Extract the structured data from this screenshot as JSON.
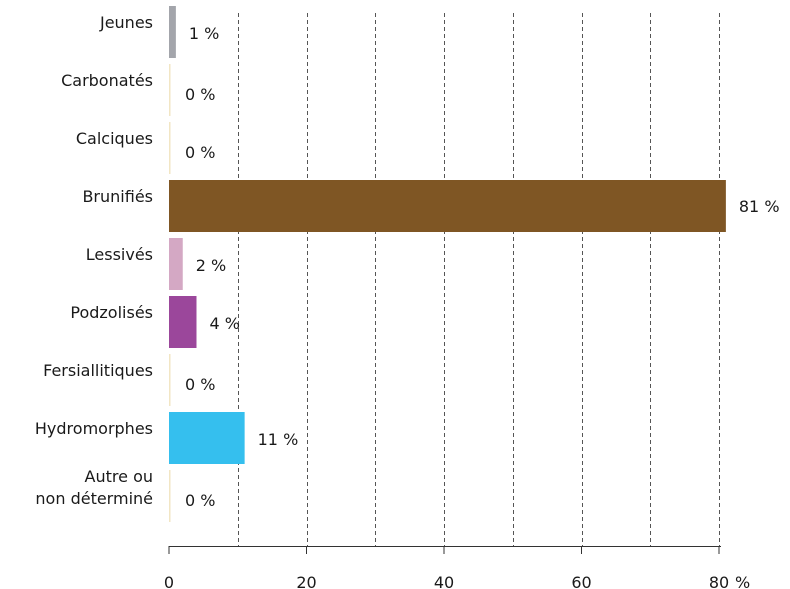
{
  "chart_data": {
    "type": "bar",
    "orientation": "horizontal",
    "categories": [
      "Jeunes",
      "Carbonatés",
      "Calciques",
      "Brunifiés",
      "Lessivés",
      "Podzolisés",
      "Fersiallitiques",
      "Hydromorphes",
      "Autre ou non déterminé"
    ],
    "category_lines": [
      [
        "Jeunes"
      ],
      [
        "Carbonatés"
      ],
      [
        "Calciques"
      ],
      [
        "Brunifiés"
      ],
      [
        "Lessivés"
      ],
      [
        "Podzolisés"
      ],
      [
        "Fersiallitiques"
      ],
      [
        "Hydromorphes"
      ],
      [
        "Autre ou",
        "non déterminé"
      ]
    ],
    "values": [
      1,
      0,
      0,
      81,
      2,
      4,
      0,
      11,
      0
    ],
    "value_labels": [
      "1 %",
      "0 %",
      "0 %",
      "81 %",
      "2 %",
      "4 %",
      "0 %",
      "11 %",
      "0 %"
    ],
    "colors": [
      "#a3a5ab",
      "#f2e6c4",
      "#f2e6c4",
      "#7f5624",
      "#d4a8c4",
      "#9b479b",
      "#f2e6c4",
      "#35bfee",
      "#f2e6c4"
    ],
    "xlim": [
      0,
      80
    ],
    "xticks": [
      0,
      20,
      40,
      60,
      80
    ],
    "xtick_labels": [
      "0",
      "20",
      "40",
      "60",
      "80"
    ],
    "x_unit": "%",
    "gridlines": [
      10,
      20,
      30,
      40,
      50,
      60,
      70,
      80
    ],
    "grid": true
  }
}
